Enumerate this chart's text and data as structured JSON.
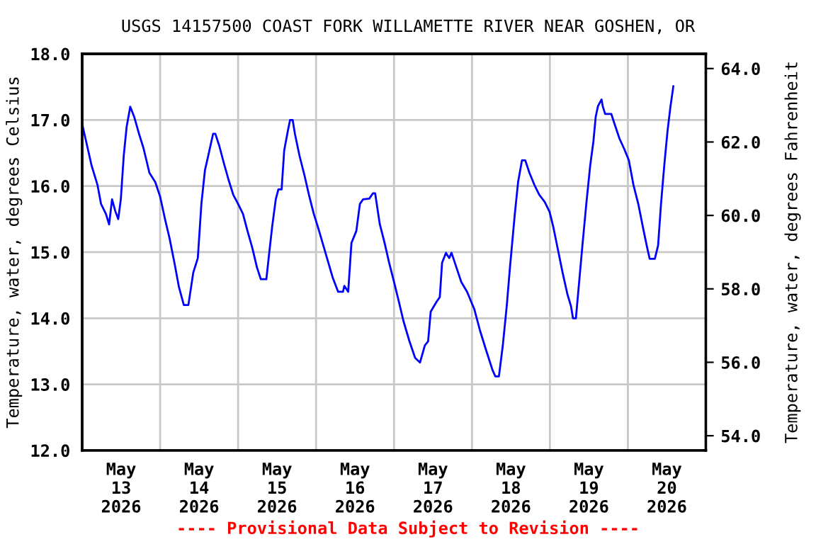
{
  "chart_data": {
    "type": "line",
    "title": "USGS 14157500 COAST FORK WILLAMETTE RIVER NEAR GOSHEN, OR",
    "ylabel": "Temperature, water, degrees Celsius",
    "y2label": "Temperature, water, degrees Fahrenheit",
    "annotations": [
      "---- Provisional Data Subject to Revision ----"
    ],
    "x": [
      "2026-05-13T00:00",
      "2026-05-13T01:12",
      "2026-05-13T02:54",
      "2026-05-13T04:42",
      "2026-05-13T05:48",
      "2026-05-13T07:18",
      "2026-05-13T08:18",
      "2026-05-13T09:12",
      "2026-05-13T10:12",
      "2026-05-13T11:06",
      "2026-05-13T11:54",
      "2026-05-13T12:48",
      "2026-05-13T13:42",
      "2026-05-13T14:48",
      "2026-05-13T16:00",
      "2026-05-13T17:30",
      "2026-05-13T18:54",
      "2026-05-13T20:42",
      "2026-05-13T22:30",
      "2026-05-14T00:00",
      "2026-05-14T01:30",
      "2026-05-14T02:54",
      "2026-05-14T04:24",
      "2026-05-14T05:48",
      "2026-05-14T07:18",
      "2026-05-14T08:42",
      "2026-05-14T10:12",
      "2026-05-14T11:36",
      "2026-05-14T12:42",
      "2026-05-14T13:48",
      "2026-05-14T15:00",
      "2026-05-14T16:18",
      "2026-05-14T17:00",
      "2026-05-14T18:12",
      "2026-05-14T19:36",
      "2026-05-14T21:06",
      "2026-05-14T22:30",
      "2026-05-15T00:00",
      "2026-05-15T01:30",
      "2026-05-15T02:54",
      "2026-05-15T04:24",
      "2026-05-15T05:48",
      "2026-05-15T07:00",
      "2026-05-15T08:42",
      "2026-05-15T09:30",
      "2026-05-15T10:30",
      "2026-05-15T11:36",
      "2026-05-15T12:24",
      "2026-05-15T13:24",
      "2026-05-15T14:12",
      "2026-05-15T15:18",
      "2026-05-15T16:00",
      "2026-05-15T16:48",
      "2026-05-15T17:30",
      "2026-05-15T18:54",
      "2026-05-15T20:24",
      "2026-05-15T21:48",
      "2026-05-15T23:18",
      "2026-05-16T00:42",
      "2026-05-16T02:54",
      "2026-05-16T05:06",
      "2026-05-16T06:48",
      "2026-05-16T08:18",
      "2026-05-16T08:42",
      "2026-05-16T09:54",
      "2026-05-16T10:54",
      "2026-05-16T12:24",
      "2026-05-16T13:30",
      "2026-05-16T14:30",
      "2026-05-16T16:24",
      "2026-05-16T17:30",
      "2026-05-16T18:12",
      "2026-05-16T19:36",
      "2026-05-16T21:06",
      "2026-05-16T22:30",
      "2026-05-17T00:00",
      "2026-05-17T01:30",
      "2026-05-17T02:54",
      "2026-05-17T04:42",
      "2026-05-17T06:30",
      "2026-05-17T08:00",
      "2026-05-17T09:30",
      "2026-05-17T10:30",
      "2026-05-17T11:18",
      "2026-05-17T13:06",
      "2026-05-17T14:06",
      "2026-05-17T14:48",
      "2026-05-17T16:00",
      "2026-05-17T17:00",
      "2026-05-17T17:42",
      "2026-05-17T19:12",
      "2026-05-17T20:42",
      "2026-05-17T22:30",
      "2026-05-18T00:42",
      "2026-05-18T02:30",
      "2026-05-18T04:24",
      "2026-05-18T06:18",
      "2026-05-18T07:12",
      "2026-05-18T08:18",
      "2026-05-18T09:30",
      "2026-05-18T10:42",
      "2026-05-18T11:42",
      "2026-05-18T13:12",
      "2026-05-18T14:12",
      "2026-05-18T15:24",
      "2026-05-18T16:24",
      "2026-05-18T17:42",
      "2026-05-18T19:12",
      "2026-05-18T20:42",
      "2026-05-18T22:24",
      "2026-05-18T23:54",
      "2026-05-19T01:00",
      "2026-05-19T02:30",
      "2026-05-19T03:54",
      "2026-05-19T05:24",
      "2026-05-19T06:30",
      "2026-05-19T07:06",
      "2026-05-19T08:00",
      "2026-05-19T09:00",
      "2026-05-19T10:00",
      "2026-05-19T11:12",
      "2026-05-19T12:24",
      "2026-05-19T13:24",
      "2026-05-19T14:06",
      "2026-05-19T14:48",
      "2026-05-19T15:54",
      "2026-05-19T16:18",
      "2026-05-19T17:00",
      "2026-05-19T18:54",
      "2026-05-19T19:54",
      "2026-05-19T21:24",
      "2026-05-19T22:48",
      "2026-05-20T00:18",
      "2026-05-20T01:42",
      "2026-05-20T03:12",
      "2026-05-20T04:42",
      "2026-05-20T05:48",
      "2026-05-20T06:42",
      "2026-05-20T08:18",
      "2026-05-20T09:18",
      "2026-05-20T10:12",
      "2026-05-20T11:12",
      "2026-05-20T12:12",
      "2026-05-20T13:06",
      "2026-05-20T14:00"
    ],
    "series": [
      {
        "color": "#0000ff",
        "values": [
          16.94,
          16.68,
          16.31,
          16.02,
          15.73,
          15.58,
          15.42,
          15.8,
          15.62,
          15.5,
          15.8,
          16.46,
          16.9,
          17.2,
          17.05,
          16.79,
          16.57,
          16.2,
          16.06,
          15.84,
          15.5,
          15.21,
          14.84,
          14.47,
          14.2,
          14.2,
          14.69,
          14.91,
          15.73,
          16.24,
          16.5,
          16.79,
          16.79,
          16.61,
          16.35,
          16.09,
          15.87,
          15.73,
          15.58,
          15.32,
          15.06,
          14.77,
          14.59,
          14.59,
          14.95,
          15.39,
          15.8,
          15.95,
          15.95,
          16.54,
          16.83,
          17.0,
          17.0,
          16.79,
          16.46,
          16.17,
          15.87,
          15.58,
          15.36,
          14.99,
          14.62,
          14.4,
          14.4,
          14.49,
          14.4,
          15.14,
          15.32,
          15.73,
          15.8,
          15.81,
          15.89,
          15.89,
          15.43,
          15.14,
          14.84,
          14.55,
          14.25,
          13.96,
          13.66,
          13.4,
          13.33,
          13.59,
          13.65,
          14.1,
          14.25,
          14.32,
          14.84,
          14.99,
          14.91,
          14.99,
          14.77,
          14.55,
          14.4,
          14.14,
          13.81,
          13.51,
          13.22,
          13.12,
          13.12,
          13.59,
          14.18,
          14.77,
          15.58,
          16.06,
          16.39,
          16.39,
          16.2,
          16.02,
          15.87,
          15.76,
          15.61,
          15.39,
          15.03,
          14.69,
          14.36,
          14.18,
          14.0,
          14.0,
          14.55,
          15.1,
          15.73,
          16.31,
          16.68,
          17.05,
          17.21,
          17.31,
          17.2,
          17.09,
          17.09,
          16.94,
          16.72,
          16.57,
          16.39,
          16.02,
          15.73,
          15.36,
          15.1,
          14.9,
          14.9,
          15.1,
          15.73,
          16.31,
          16.83,
          17.2,
          17.51
        ]
      }
    ],
    "xlim": [
      "2026-05-13T00:00",
      "2026-05-21T00:00"
    ],
    "xticks": [
      {
        "value": "2026-05-13T00:00",
        "label": null
      },
      {
        "value": "2026-05-13T12:00",
        "label": "May\n13\n2026"
      },
      {
        "value": "2026-05-14T00:00",
        "label": null
      },
      {
        "value": "2026-05-14T12:00",
        "label": "May\n14\n2026"
      },
      {
        "value": "2026-05-15T00:00",
        "label": null
      },
      {
        "value": "2026-05-15T12:00",
        "label": "May\n15\n2026"
      },
      {
        "value": "2026-05-16T00:00",
        "label": null
      },
      {
        "value": "2026-05-16T12:00",
        "label": "May\n16\n2026"
      },
      {
        "value": "2026-05-17T00:00",
        "label": null
      },
      {
        "value": "2026-05-17T12:00",
        "label": "May\n17\n2026"
      },
      {
        "value": "2026-05-18T00:00",
        "label": null
      },
      {
        "value": "2026-05-18T12:00",
        "label": "May\n18\n2026"
      },
      {
        "value": "2026-05-19T00:00",
        "label": null
      },
      {
        "value": "2026-05-19T12:00",
        "label": "May\n19\n2026"
      },
      {
        "value": "2026-05-20T00:00",
        "label": null
      },
      {
        "value": "2026-05-20T12:00",
        "label": "May\n20\n2026"
      },
      {
        "value": "2026-05-21T00:00",
        "label": null
      }
    ],
    "ylim": [
      12.0,
      18.0
    ],
    "yticks": [
      {
        "value": 12,
        "label": "12.0"
      },
      {
        "value": 13,
        "label": "13.0"
      },
      {
        "value": 14,
        "label": "14.0"
      },
      {
        "value": 15,
        "label": "15.0"
      },
      {
        "value": 16,
        "label": "16.0"
      },
      {
        "value": 17,
        "label": "17.0"
      },
      {
        "value": 18,
        "label": "18.0"
      }
    ],
    "y2lim": [
      53.6,
      64.4
    ],
    "y2ticks": [
      {
        "value": 54,
        "label": "54.0"
      },
      {
        "value": 56,
        "label": "56.0"
      },
      {
        "value": 58,
        "label": "58.0"
      },
      {
        "value": 60,
        "label": "60.0"
      },
      {
        "value": 62,
        "label": "62.0"
      },
      {
        "value": 64,
        "label": "64.0"
      }
    ],
    "grid": true,
    "legend": false,
    "marker": "none",
    "line_style": "solid"
  }
}
